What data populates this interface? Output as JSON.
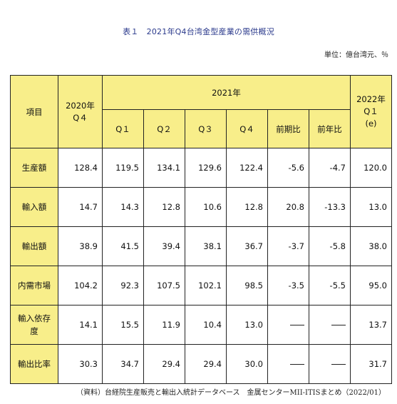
{
  "title": "表１　2021年Q4台湾金型産業の需供概況",
  "unit": "単位：億台湾元、％",
  "header": {
    "item": "項目",
    "prev": "2020年\nQ４",
    "year": "2021年",
    "next": "2022年\nQ１\n(e)",
    "cols": [
      "Q１",
      "Q２",
      "Q３",
      "Q４",
      "前期比",
      "前年比"
    ]
  },
  "rows": [
    {
      "label": "生産額",
      "values": [
        "128.4",
        "119.5",
        "134.1",
        "129.6",
        "122.4",
        "-5.6",
        "-4.7",
        "120.0"
      ]
    },
    {
      "label": "輸入額",
      "values": [
        "14.7",
        "14.3",
        "12.8",
        "10.6",
        "12.8",
        "20.8",
        "-13.3",
        "13.0"
      ]
    },
    {
      "label": "輸出額",
      "values": [
        "38.9",
        "41.5",
        "39.4",
        "38.1",
        "36.7",
        "-3.7",
        "-5.8",
        "38.0"
      ]
    },
    {
      "label": "内需市場",
      "values": [
        "104.2",
        "92.3",
        "107.5",
        "102.1",
        "98.5",
        "-3.5",
        "-5.5",
        "95.0"
      ]
    },
    {
      "label": "輸入依存\n度",
      "values": [
        "14.1",
        "15.5",
        "11.9",
        "10.4",
        "13.0",
        "",
        "",
        "13.7"
      ]
    },
    {
      "label": "輸出比率",
      "values": [
        "30.3",
        "34.7",
        "29.4",
        "29.4",
        "30.0",
        "",
        "",
        "31.7"
      ]
    }
  ],
  "source": "（資料）台経院生産販売と輸出入統計データベース　金属センターMII-ITISまとめ（2022/01）"
}
